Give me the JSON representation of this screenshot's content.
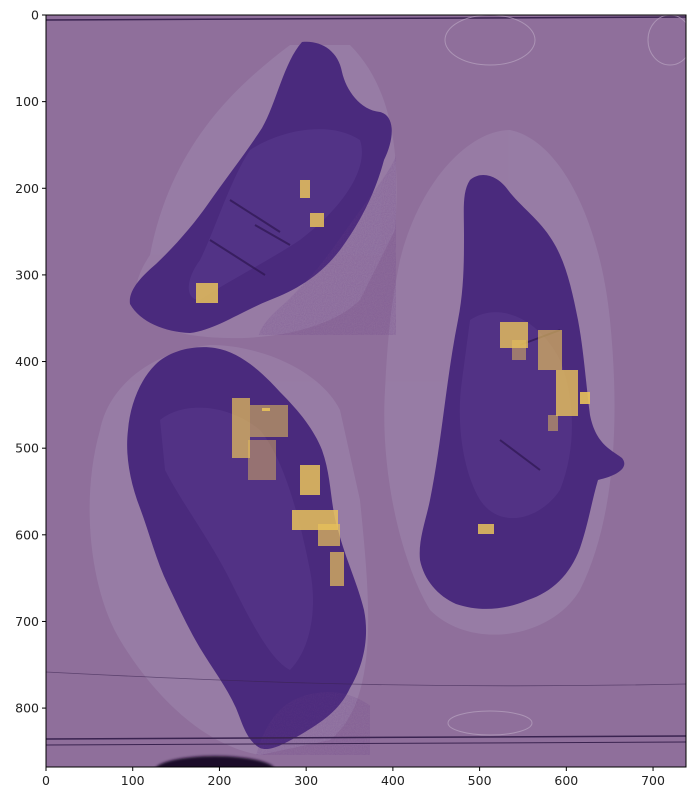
{
  "figure": {
    "image_description_label": "H&E whole-slide image with heatmap overlay",
    "overlay_colormap": [
      "#440154",
      "#7b4f96",
      "#f2c85a"
    ],
    "background_color": "#8f6f9b",
    "tissue_color": "#4a2a7d",
    "hotspot_color": "#e8c25a"
  },
  "axes": {
    "x_ticks": [
      "0",
      "100",
      "200",
      "300",
      "400",
      "500",
      "600",
      "700"
    ],
    "y_ticks": [
      "0",
      "100",
      "200",
      "300",
      "400",
      "500",
      "600",
      "700",
      "800"
    ],
    "x_range": [
      0,
      738
    ],
    "y_range": [
      868,
      0
    ]
  }
}
